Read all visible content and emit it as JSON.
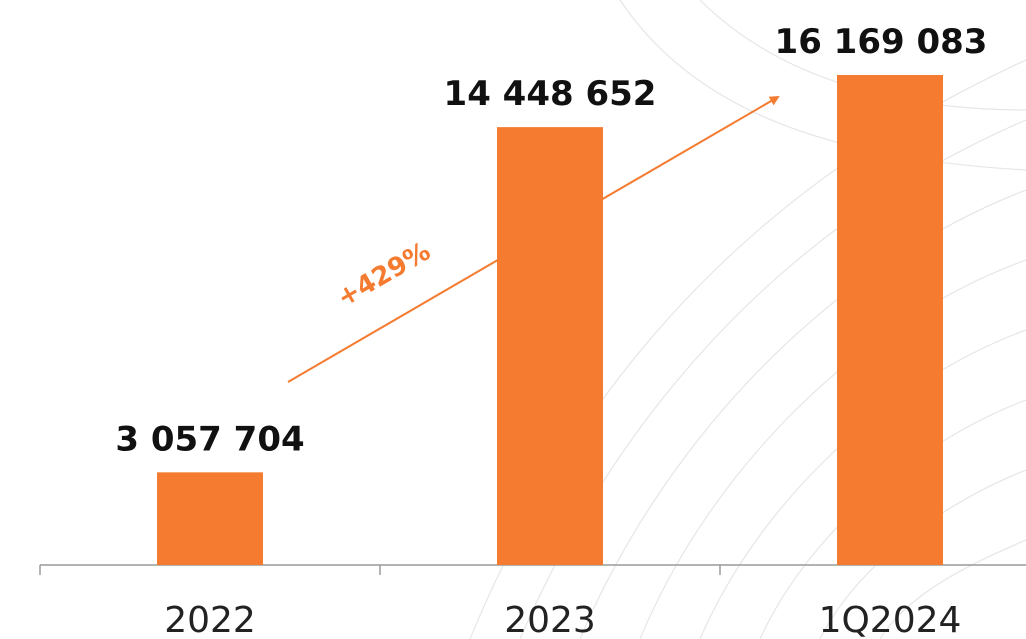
{
  "chart_data": {
    "type": "bar",
    "categories": [
      "2022",
      "2023",
      "1Q2024"
    ],
    "values": [
      3057704,
      14448652,
      16169083
    ],
    "value_labels": [
      "3 057 704",
      "14 448 652",
      "16 169 083"
    ],
    "color": "#f47b30",
    "annotation": "+429%"
  }
}
